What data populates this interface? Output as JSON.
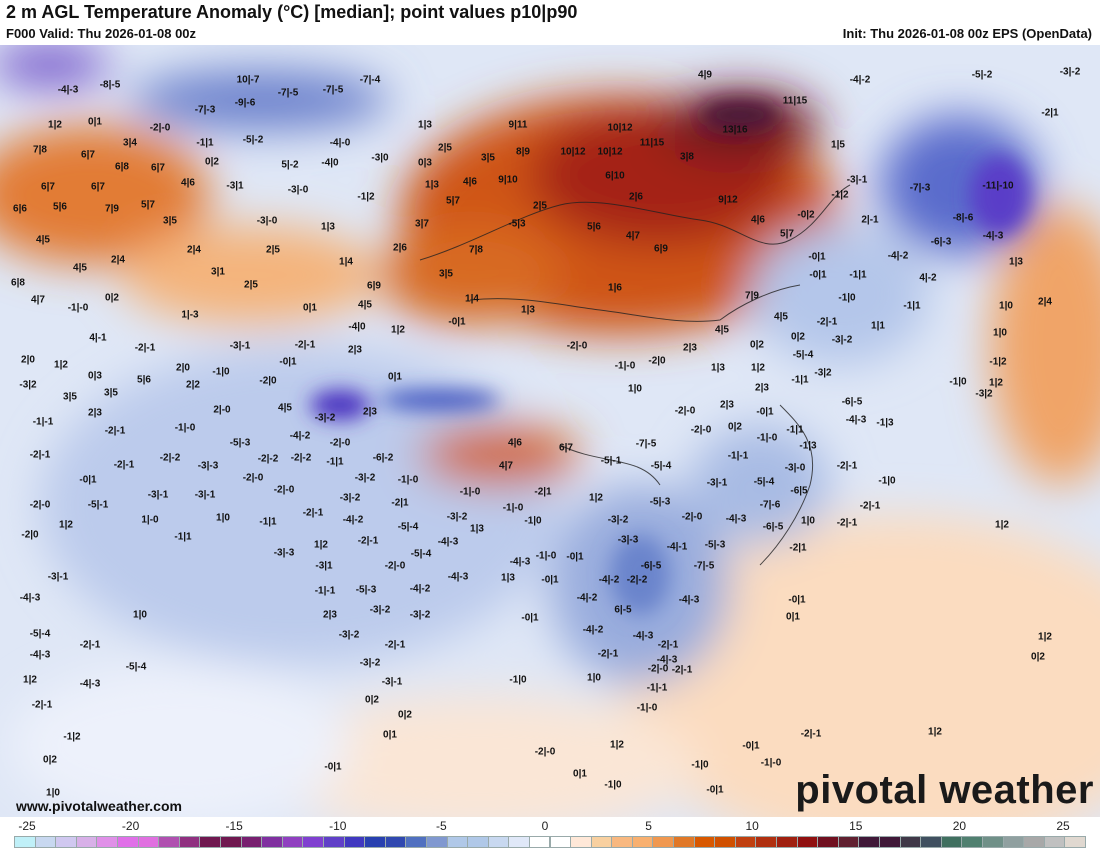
{
  "header": {
    "title": "2 m AGL Temperature Anomaly (°C) [median]; point values p10|p90",
    "valid": "F000 Valid: Thu 2026-01-08 00z",
    "init": "Init: Thu 2026-01-08 00z EPS (OpenData)"
  },
  "footer": {
    "website": "www.pivotalweather.com",
    "brand": "pivotal weather"
  },
  "colorbar": {
    "ticks": [
      "-25",
      "-20",
      "-15",
      "-10",
      "-5",
      "0",
      "5",
      "10",
      "15",
      "20",
      "25"
    ],
    "tick_values": [
      -25,
      -20,
      -15,
      -10,
      -5,
      0,
      5,
      10,
      15,
      20,
      25
    ],
    "colors": [
      "#c0f0f8",
      "#c8d8f0",
      "#d0c8f0",
      "#d8b0e8",
      "#e090e8",
      "#e070e8",
      "#e070e0",
      "#b050b0",
      "#903080",
      "#701850",
      "#701850",
      "#782070",
      "#8030a0",
      "#9040c0",
      "#8040d0",
      "#6040c8",
      "#4038c0",
      "#2840b0",
      "#3048b0",
      "#5070c0",
      "#8098d0",
      "#b0c8e8",
      "#b0c8e8",
      "#c8d8f0",
      "#e0e8f8",
      "#ffffff",
      "#ffffff",
      "#ffe8d8",
      "#f8d0a0",
      "#f8b880",
      "#f8b070",
      "#f09850",
      "#e07828",
      "#d85800",
      "#d05000",
      "#c04010",
      "#b03010",
      "#a02010",
      "#901010",
      "#701020",
      "#602030",
      "#401838",
      "#401838",
      "#403848",
      "#405060",
      "#407060",
      "#508070",
      "#709088",
      "#90a0a0",
      "#a8a8a8",
      "#c0c0c0",
      "#e0d8d0"
    ]
  },
  "point_values": [
    "-4|-3",
    "-8|-5",
    "10|-7",
    "-7|-5",
    "-7|-5",
    "-7|-4",
    "4|9",
    "-4|-2",
    "-5|-2",
    "-3|-2",
    "-7|-3",
    "-9|-6",
    "11|15",
    "-2|1",
    "1|2",
    "0|1",
    "-2|-0",
    "1|3",
    "9|11",
    "10|12",
    "13|16",
    "3|4",
    "-1|1",
    "-5|-2",
    "-4|-0",
    "2|5",
    "11|15",
    "1|5",
    "7|8",
    "6|7",
    "6|8",
    "6|7",
    "0|2",
    "5|-2",
    "-4|0",
    "-3|0",
    "0|3",
    "3|5",
    "8|9",
    "10|12",
    "10|12",
    "3|8",
    "6|7",
    "6|7",
    "4|6",
    "-3|1",
    "-3|-0",
    "1|3",
    "4|6",
    "9|10",
    "6|10",
    "-3|-1",
    "-7|-3",
    "-11|-10",
    "6|6",
    "5|6",
    "7|9",
    "5|7",
    "-1|2",
    "5|7",
    "2|5",
    "2|6",
    "9|12",
    "-1|2",
    "3|5",
    "-3|-0",
    "1|3",
    "3|7",
    "-5|3",
    "5|6",
    "4|7",
    "4|6",
    "-0|2",
    "2|-1",
    "-8|-6",
    "4|5",
    "2|4",
    "2|5",
    "2|6",
    "7|8",
    "6|9",
    "5|7",
    "-6|-3",
    "-4|-3",
    "4|5",
    "2|4",
    "3|1",
    "1|4",
    "3|5",
    "1|6",
    "-0|1",
    "-4|-2",
    "1|3",
    "6|8",
    "2|5",
    "6|9",
    "-0|1",
    "-1|1",
    "4|-2",
    "4|7",
    "0|2",
    "4|5",
    "1|4",
    "7|9",
    "-1|0",
    "-1|1",
    "1|0",
    "2|4",
    "-1|-0",
    "1|-3",
    "0|1",
    "1|3",
    "4|5",
    "-2|-1",
    "1|1",
    "-4|0",
    "-0|1",
    "1|2",
    "4|5",
    "0|2",
    "1|0",
    "4|-1",
    "-3|-1",
    "-2|-1",
    "2|3",
    "-2|-0",
    "2|3",
    "0|2",
    "-3|-2",
    "-5|-4",
    "2|0",
    "1|2",
    "-2|-1",
    "-0|1",
    "-1|-0",
    "-2|0",
    "1|3",
    "1|2",
    "-1|1",
    "-1|2",
    "-3|2",
    "0|3",
    "5|6",
    "2|0",
    "-1|0",
    "0|1",
    "1|0",
    "2|3",
    "-1|0",
    "1|2",
    "3|5",
    "3|5",
    "2|2",
    "-2|0",
    "-3|2",
    "-3|2",
    "2|3",
    "2|-0",
    "4|5",
    "-3|-2",
    "2|3",
    "-2|-0",
    "2|3",
    "-0|1",
    "-6|-5",
    "-1|-1",
    "-2|-1",
    "-1|-0",
    "-4|-2",
    "0|2",
    "-4|-3",
    "-1|3",
    "-1|1",
    "-2|-0",
    "-5|-3",
    "-2|-0",
    "4|6",
    "6|7",
    "-7|-5",
    "-1|-0",
    "-1|3",
    "-2|-1",
    "-2|-2",
    "-2|-2",
    "-2|-2",
    "-6|-2",
    "-5|-1",
    "-5|-4",
    "-1|-1",
    "-3|-0",
    "-2|-1",
    "-3|-3",
    "-1|1",
    "4|7",
    "-1|-0",
    "-2|-1",
    "-0|1",
    "-2|-0",
    "-3|-2",
    "-3|-1",
    "-5|-4",
    "-1|0",
    "-3|-1",
    "-3|-1",
    "-2|-0",
    "-3|-2",
    "-2|1",
    "-1|-0",
    "1|2",
    "-5|-3",
    "-6|5",
    "-2|-1",
    "-2|-0",
    "-5|-1",
    "-2|-1",
    "-2|1",
    "-1|-0",
    "-7|-6",
    "1|2",
    "1|-0",
    "1|0",
    "-1|1",
    "-4|-2",
    "-5|-4",
    "-3|-2",
    "-1|0",
    "-3|-2",
    "-2|-0",
    "-4|-3",
    "-6|-5",
    "1|0",
    "-2|-1",
    "1|2",
    "-2|0",
    "-1|1",
    "-4|-3",
    "1|3",
    "-3|-3",
    "-4|-1",
    "-5|-3",
    "-2|1",
    "1|2",
    "-2|-1",
    "-5|-4",
    "-1|-0",
    "-0|1",
    "-4|-3",
    "-4|-3",
    "-3|-3",
    "-2|-0",
    "-6|-5",
    "-3|-1",
    "1|3",
    "-4|-2",
    "-3|1",
    "-7|-5",
    "-0|1",
    "-2|-2",
    "-4|-3",
    "-1|-1",
    "-5|-3",
    "-4|-2",
    "-4|-2",
    "-4|-3",
    "-0|1",
    "1|0",
    "2|3",
    "-3|-2",
    "-3|-2",
    "-0|1",
    "6|-5",
    "0|1",
    "-5|-4",
    "-2|-1",
    "-3|-2",
    "-4|-2",
    "-4|-3",
    "1|2",
    "-4|-3",
    "-2|-1",
    "-2|-1",
    "-2|-1",
    "-4|-3",
    "0|2",
    "-5|-4",
    "-3|-2",
    "-2|-0",
    "-2|-1",
    "1|2",
    "-4|-3",
    "-3|-1",
    "-1|0",
    "1|0",
    "-1|-1",
    "-1|-0",
    "-2|-1",
    "0|2",
    "0|2",
    "0|1",
    "-1|2",
    "1|2",
    "1|2",
    "-0|1",
    "-2|-1",
    "-2|-0",
    "-1|0",
    "-1|-0",
    "0|2",
    "-0|1",
    "0|1",
    "-1|0",
    "-0|1",
    "1|0"
  ]
}
